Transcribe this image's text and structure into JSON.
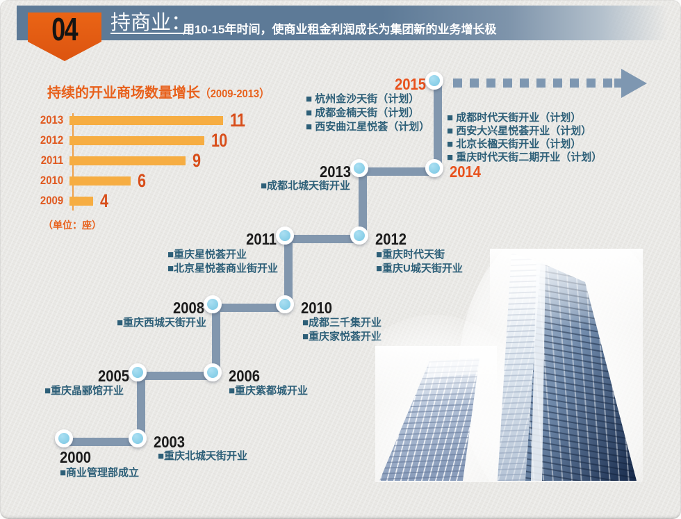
{
  "header": {
    "badge": "04",
    "title": "持商业：",
    "subtitle": "用10-15年时间，使商业租金利润成长为集团新的业务增长极"
  },
  "chart_data": {
    "type": "bar",
    "orientation": "horizontal",
    "title_main": "持续的开业商场数量增长",
    "title_range": "（2009-2013）",
    "unit_note": "（单位：座）",
    "categories": [
      "2013",
      "2012",
      "2011",
      "2010",
      "2009"
    ],
    "values": [
      11,
      10,
      9,
      6,
      4
    ],
    "xlim": [
      0,
      11
    ],
    "bar_color": "#f6ad42",
    "value_label_color": "#d84e1a",
    "axis_color": "#efa14b",
    "grid": false,
    "legend": false
  },
  "timeline": {
    "entries": [
      {
        "year": "2000",
        "plan": false,
        "items": [
          "■商业管理部成立"
        ]
      },
      {
        "year": "2003",
        "plan": false,
        "items": [
          "■重庆北城天街开业"
        ]
      },
      {
        "year": "2005",
        "plan": false,
        "items": [
          "■重庆晶郦馆开业"
        ]
      },
      {
        "year": "2006",
        "plan": false,
        "items": [
          "■重庆紫都城开业"
        ]
      },
      {
        "year": "2008",
        "plan": false,
        "items": [
          "■重庆西城天街开业"
        ]
      },
      {
        "year": "2010",
        "plan": false,
        "items": [
          "■成都三千集开业",
          "■重庆家悦荟开业"
        ]
      },
      {
        "year": "2011",
        "plan": false,
        "items": [
          "■重庆星悦荟开业",
          "■北京星悦荟商业街开业"
        ]
      },
      {
        "year": "2012",
        "plan": false,
        "items": [
          "■重庆时代天街",
          "■重庆U城天街开业"
        ]
      },
      {
        "year": "2013",
        "plan": false,
        "items": [
          "■成都北城天街开业"
        ]
      },
      {
        "year": "2014",
        "plan": true,
        "items": [
          "■ 成都时代天街开业（计划）",
          "■ 西安大兴星悦荟开业（计划）",
          "■ 北京长楹天街开业（计划）",
          "■ 重庆时代天街二期开业（计划）"
        ]
      },
      {
        "year": "2015",
        "plan": true,
        "items": [
          "■ 杭州金沙天街（计划）",
          "■ 成都金楠天街（计划）",
          "■ 西安曲江星悦荟（计划）"
        ]
      }
    ],
    "colors": {
      "node": "#8fd2ea",
      "connector": "#8297ae",
      "year_past": "#1b1b1b",
      "year_plan": "#e8511c",
      "item_text": "#2d5f78",
      "dash": "#7e97b1"
    }
  }
}
